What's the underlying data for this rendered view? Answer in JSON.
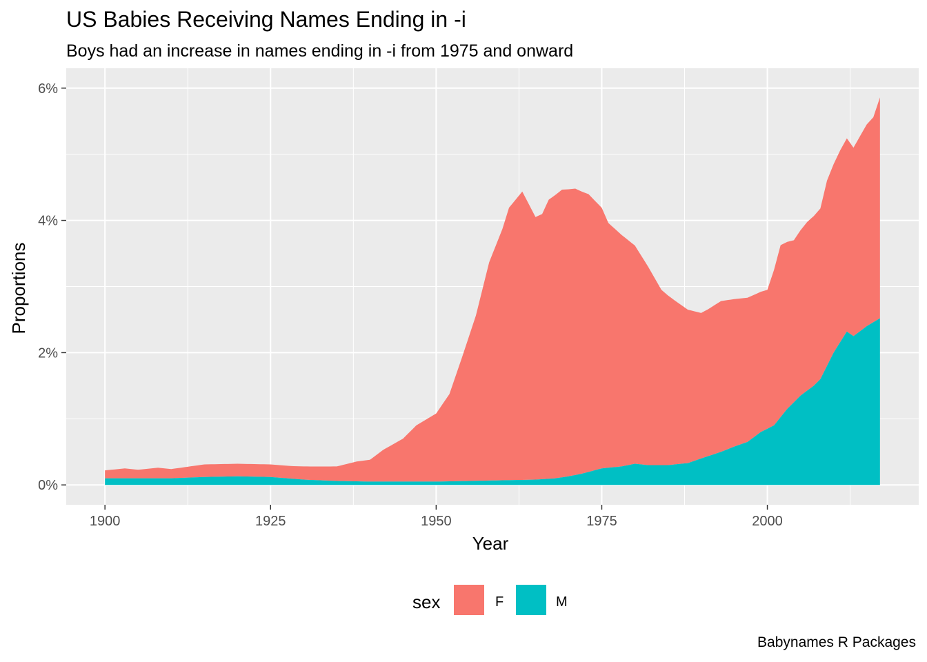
{
  "chart_data": {
    "type": "area",
    "stacked": true,
    "title": "US Babies Receiving Names Ending in -i",
    "subtitle": "Boys had an increase in names ending in -i from 1975 and onward",
    "xlabel": "Year",
    "ylabel": "Proportions",
    "caption": "Babynames R Packages",
    "xlim": [
      1900,
      2017
    ],
    "ylim": [
      0,
      0.06
    ],
    "x_ticks": [
      1900,
      1925,
      1950,
      1975,
      2000
    ],
    "y_ticks": [
      0,
      0.02,
      0.04,
      0.06
    ],
    "y_tick_labels": [
      "0%",
      "2%",
      "4%",
      "6%"
    ],
    "legend": {
      "title": "sex",
      "position": "bottom"
    },
    "grid": true,
    "series": [
      {
        "name": "M",
        "color": "#00BFC4",
        "points": [
          [
            1900,
            0.001
          ],
          [
            1905,
            0.001
          ],
          [
            1910,
            0.001
          ],
          [
            1915,
            0.0012
          ],
          [
            1920,
            0.0013
          ],
          [
            1925,
            0.0012
          ],
          [
            1930,
            0.0008
          ],
          [
            1935,
            0.0006
          ],
          [
            1940,
            0.0005
          ],
          [
            1945,
            0.0005
          ],
          [
            1950,
            0.0005
          ],
          [
            1955,
            0.0006
          ],
          [
            1960,
            0.0007
          ],
          [
            1965,
            0.0008
          ],
          [
            1968,
            0.001
          ],
          [
            1970,
            0.0013
          ],
          [
            1972,
            0.0017
          ],
          [
            1975,
            0.0025
          ],
          [
            1978,
            0.0028
          ],
          [
            1980,
            0.0032
          ],
          [
            1982,
            0.003
          ],
          [
            1985,
            0.003
          ],
          [
            1988,
            0.0033
          ],
          [
            1990,
            0.004
          ],
          [
            1993,
            0.005
          ],
          [
            1995,
            0.0058
          ],
          [
            1997,
            0.0065
          ],
          [
            1999,
            0.008
          ],
          [
            2001,
            0.009
          ],
          [
            2003,
            0.0115
          ],
          [
            2005,
            0.0135
          ],
          [
            2007,
            0.015
          ],
          [
            2008,
            0.016
          ],
          [
            2010,
            0.02
          ],
          [
            2012,
            0.0232
          ],
          [
            2013,
            0.0225
          ],
          [
            2015,
            0.024
          ],
          [
            2017,
            0.0252
          ]
        ]
      },
      {
        "name": "F",
        "color": "#F8766D",
        "points": [
          [
            1900,
            0.0012
          ],
          [
            1903,
            0.0015
          ],
          [
            1905,
            0.0013
          ],
          [
            1908,
            0.0016
          ],
          [
            1910,
            0.0014
          ],
          [
            1915,
            0.0019
          ],
          [
            1920,
            0.0019
          ],
          [
            1925,
            0.0019
          ],
          [
            1928,
            0.0019
          ],
          [
            1930,
            0.002
          ],
          [
            1933,
            0.0021
          ],
          [
            1935,
            0.0022
          ],
          [
            1938,
            0.003
          ],
          [
            1940,
            0.0033
          ],
          [
            1942,
            0.0048
          ],
          [
            1945,
            0.0065
          ],
          [
            1947,
            0.0085
          ],
          [
            1950,
            0.0103
          ],
          [
            1952,
            0.0132
          ],
          [
            1954,
            0.019
          ],
          [
            1956,
            0.025
          ],
          [
            1958,
            0.033
          ],
          [
            1960,
            0.038
          ],
          [
            1961,
            0.0412
          ],
          [
            1963,
            0.0436
          ],
          [
            1965,
            0.0397
          ],
          [
            1966,
            0.0401
          ],
          [
            1967,
            0.0422
          ],
          [
            1969,
            0.0435
          ],
          [
            1971,
            0.0433
          ],
          [
            1973,
            0.042
          ],
          [
            1975,
            0.0394
          ],
          [
            1976,
            0.037
          ],
          [
            1978,
            0.035
          ],
          [
            1980,
            0.033
          ],
          [
            1982,
            0.03
          ],
          [
            1984,
            0.0265
          ],
          [
            1986,
            0.0248
          ],
          [
            1988,
            0.0232
          ],
          [
            1990,
            0.022
          ],
          [
            1991,
            0.0222
          ],
          [
            1993,
            0.0228
          ],
          [
            1995,
            0.0223
          ],
          [
            1997,
            0.0218
          ],
          [
            1999,
            0.0212
          ],
          [
            2000,
            0.021
          ],
          [
            2001,
            0.0235
          ],
          [
            2002,
            0.026
          ],
          [
            2004,
            0.0245
          ],
          [
            2006,
            0.0255
          ],
          [
            2008,
            0.0258
          ],
          [
            2009,
            0.028
          ],
          [
            2011,
            0.029
          ],
          [
            2012,
            0.0292
          ],
          [
            2013,
            0.0285
          ],
          [
            2015,
            0.0305
          ],
          [
            2016,
            0.031
          ],
          [
            2017,
            0.0334
          ]
        ]
      }
    ]
  }
}
